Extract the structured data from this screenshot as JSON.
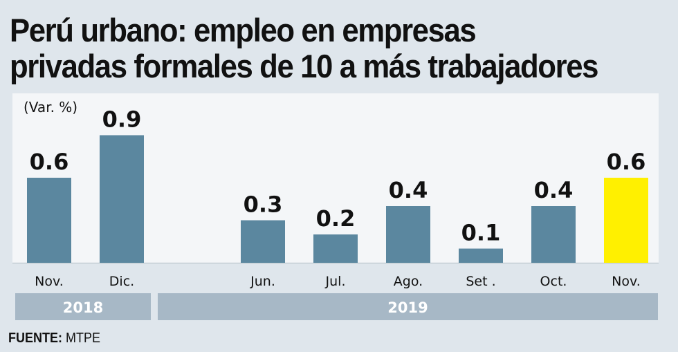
{
  "title": {
    "line1": "Perú urbano: empleo en empresas",
    "line2": "privadas formales de 10 a más trabajadores"
  },
  "source": {
    "label": "FUENTE:",
    "value": "MTPE"
  },
  "chart_data": {
    "type": "bar",
    "title": "Perú urbano: empleo en empresas privadas formales de 10 a más trabajadores",
    "ylabel": "(Var. %)",
    "xlabel": "",
    "categories": [
      "Nov.",
      "Dic.",
      "Jun.",
      "Jul.",
      "Ago.",
      "Set .",
      "Oct.",
      "Nov."
    ],
    "values": [
      0.6,
      0.9,
      0.3,
      0.2,
      0.4,
      0.1,
      0.4,
      0.6
    ],
    "data_labels": [
      "0.6",
      "0.9",
      "0.3",
      "0.2",
      "0.4",
      "0.1",
      "0.4",
      "0.6"
    ],
    "groups": [
      {
        "label": "2018",
        "categories": [
          "Nov.",
          "Dic."
        ]
      },
      {
        "label": "2019",
        "categories": [
          "Jun.",
          "Jul.",
          "Ago.",
          "Set .",
          "Oct.",
          "Nov."
        ]
      }
    ],
    "highlight_index": 7,
    "colors": {
      "bar": "#5b879f",
      "highlight": "#fff000",
      "group_band": "#a7b8c6",
      "group_text": "#ffffff"
    },
    "ylim": [
      0,
      0.9
    ],
    "grid": false,
    "legend": "none"
  }
}
